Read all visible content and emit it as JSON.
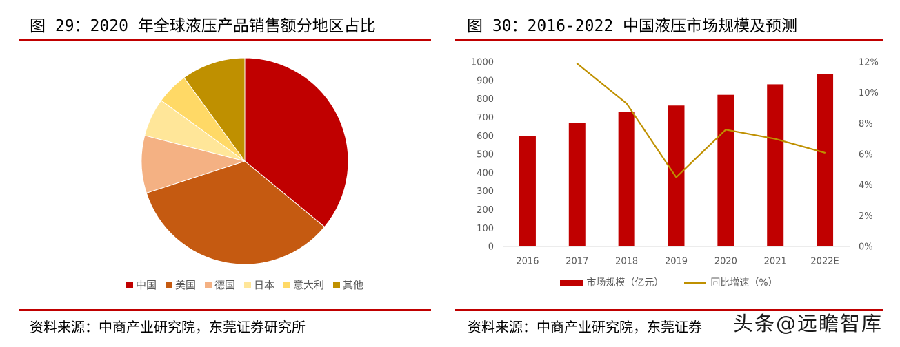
{
  "colors": {
    "accent_rule": "#C00000",
    "axis_text": "#595959",
    "axis_line": "#D9D9D9"
  },
  "watermark": {
    "text": "头条@远瞻智库"
  },
  "chart_data": [
    {
      "type": "pie",
      "title": "图 29：2020 年全球液压产品销售额分地区占比",
      "labels": [
        "中国",
        "美国",
        "德国",
        "日本",
        "意大利",
        "其他"
      ],
      "values": [
        36,
        34,
        9,
        6,
        5,
        10
      ],
      "colors": [
        "#C00000",
        "#C55A11",
        "#F4B183",
        "#FFE699",
        "#FFD966",
        "#BF9000"
      ],
      "legend": "bottom",
      "source": "资料来源：中商产业研究院，东莞证券研究所"
    },
    {
      "type": "bar",
      "title": "图 30：2016-2022 中国液压市场规模及预测",
      "categories": [
        "2016",
        "2017",
        "2018",
        "2019",
        "2020",
        "2021",
        "2022E"
      ],
      "series": [
        {
          "name": "市场规模（亿元）",
          "type": "bar",
          "axis": "left",
          "color": "#C00000",
          "values": [
            597,
            668,
            730,
            764,
            822,
            879,
            933
          ]
        },
        {
          "name": "同比增速（%）",
          "type": "line",
          "axis": "right",
          "color": "#BF9000",
          "values": [
            null,
            11.9,
            9.3,
            4.5,
            7.6,
            7.0,
            6.1
          ]
        }
      ],
      "y_left": {
        "range": [
          0,
          1000
        ],
        "ticks": [
          "0",
          "100",
          "200",
          "300",
          "400",
          "500",
          "600",
          "700",
          "800",
          "900",
          "1000"
        ]
      },
      "y_right": {
        "range": [
          0,
          12
        ],
        "ticks": [
          "0%",
          "2%",
          "4%",
          "6%",
          "8%",
          "10%",
          "12%"
        ]
      },
      "grid": false,
      "legend": "bottom",
      "source": "资料来源：中商产业研究院，东莞证券"
    }
  ]
}
